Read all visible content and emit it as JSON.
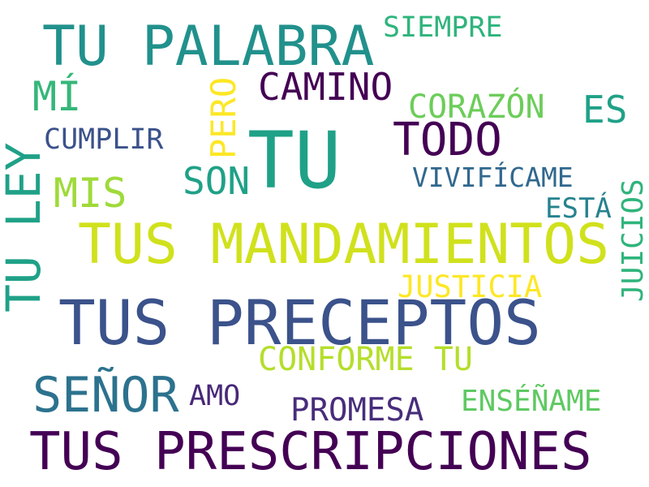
{
  "words": [
    {
      "text": "TU PALABRA",
      "color": "#21918c"
    },
    {
      "text": "SIEMPRE",
      "color": "#2fb47c"
    },
    {
      "text": "MÍ",
      "color": "#35b779"
    },
    {
      "text": "CAMINO",
      "color": "#440154"
    },
    {
      "text": "CORAZÓN",
      "color": "#6ccd5a"
    },
    {
      "text": "ES",
      "color": "#1fa187"
    },
    {
      "text": "CUMPLIR",
      "color": "#3b528b"
    },
    {
      "text": "TODO",
      "color": "#440154"
    },
    {
      "text": "TU",
      "color": "#1fa187"
    },
    {
      "text": "SON",
      "color": "#1fa187"
    },
    {
      "text": "MIS",
      "color": "#9fda3a"
    },
    {
      "text": "VIVIFÍCAME",
      "color": "#31688e"
    },
    {
      "text": "ESTÁ",
      "color": "#26828e"
    },
    {
      "text": "TUS MANDAMIENTOS",
      "color": "#d0e11c"
    },
    {
      "text": "JUSTICIA",
      "color": "#fde725"
    },
    {
      "text": "TUS PRECEPTOS",
      "color": "#3b528b"
    },
    {
      "text": "CONFORME TU",
      "color": "#b5de2b"
    },
    {
      "text": "SEÑOR",
      "color": "#2c728e"
    },
    {
      "text": "AMO",
      "color": "#482878"
    },
    {
      "text": "PROMESA",
      "color": "#472d7b"
    },
    {
      "text": "ENSÉÑAME",
      "color": "#5ec962"
    },
    {
      "text": "TUS PRESCRIPCIONES",
      "color": "#440154"
    }
  ],
  "vertical_words": [
    {
      "text": "TU LEY",
      "color": "#1fa187"
    },
    {
      "text": "PERO",
      "color": "#fde725"
    },
    {
      "text": "JUICIOS",
      "color": "#2fb47c"
    }
  ]
}
